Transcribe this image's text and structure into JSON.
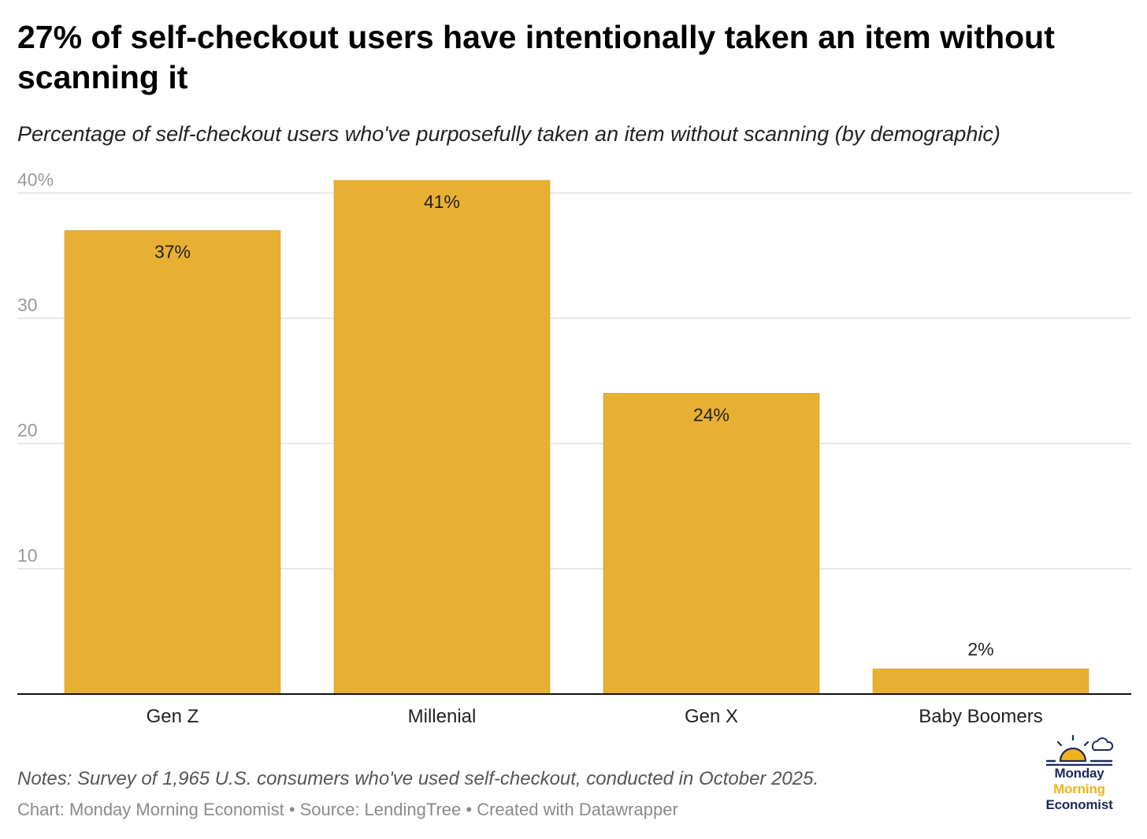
{
  "header": {
    "title": "27% of self-checkout users have intentionally taken an item without scanning it",
    "subtitle": "Percentage of self-checkout users who've purposefully taken an item without scanning (by demographic)"
  },
  "chart_data": {
    "type": "bar",
    "title": "27% of self-checkout users have intentionally taken an item without scanning it",
    "subtitle": "Percentage of self-checkout users who've purposefully taken an item without scanning (by demographic)",
    "categories": [
      "Gen Z",
      "Millenial",
      "Gen X",
      "Baby Boomers"
    ],
    "values": [
      37,
      41,
      24,
      2
    ],
    "data_labels": [
      "37%",
      "41%",
      "24%",
      "2%"
    ],
    "xlabel": "",
    "ylabel": "",
    "ylim": [
      0,
      40
    ],
    "yticks": [
      10,
      20,
      30,
      40
    ],
    "ytick_labels": [
      "10",
      "20",
      "30",
      "40%"
    ],
    "grid": true,
    "bar_color": "#e8b033",
    "legend": "none"
  },
  "footer": {
    "notes": "Notes: Survey of 1,965 U.S. consumers who've used self-checkout, conducted in October 2025.",
    "credits": "Chart: Monday Morning Economist • Source: LendingTree • Created with Datawrapper"
  },
  "logo": {
    "line1": "Monday",
    "line2": "Morning",
    "line3": "Economist",
    "navy": "#1c2a5c",
    "gold": "#f2b21b"
  }
}
